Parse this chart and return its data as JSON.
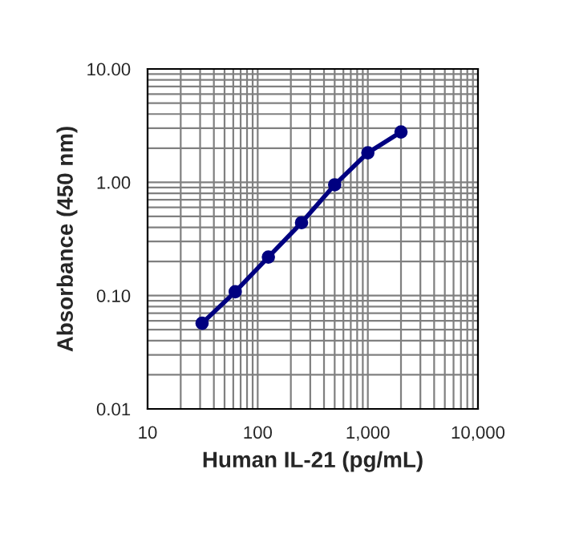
{
  "chart_data": {
    "type": "line",
    "xlabel": "Human IL-21 (pg/mL)",
    "ylabel": "Absorbance (450 nm)",
    "x": [
      31.25,
      62.5,
      125,
      250,
      500,
      1000,
      2000
    ],
    "series": [
      {
        "color": "#000080",
        "values": [
          0.057,
          0.108,
          0.219,
          0.44,
          0.95,
          1.82,
          2.78
        ]
      }
    ],
    "log": "xy",
    "xlim": [
      10,
      10000
    ],
    "ylim": [
      0.01,
      10
    ],
    "xticks": [
      10,
      100,
      {
        "value": 1000,
        "label": "1,000"
      },
      {
        "value": 10000,
        "label": "10,000"
      }
    ],
    "yticks": [
      {
        "value": 0.01,
        "label": "0.01"
      },
      {
        "value": 0.1,
        "label": "0.10"
      },
      {
        "value": 1,
        "label": "1.00"
      },
      {
        "value": 10,
        "label": "10.00"
      }
    ],
    "grid": true,
    "marker": "circle",
    "line_style": "solid"
  }
}
